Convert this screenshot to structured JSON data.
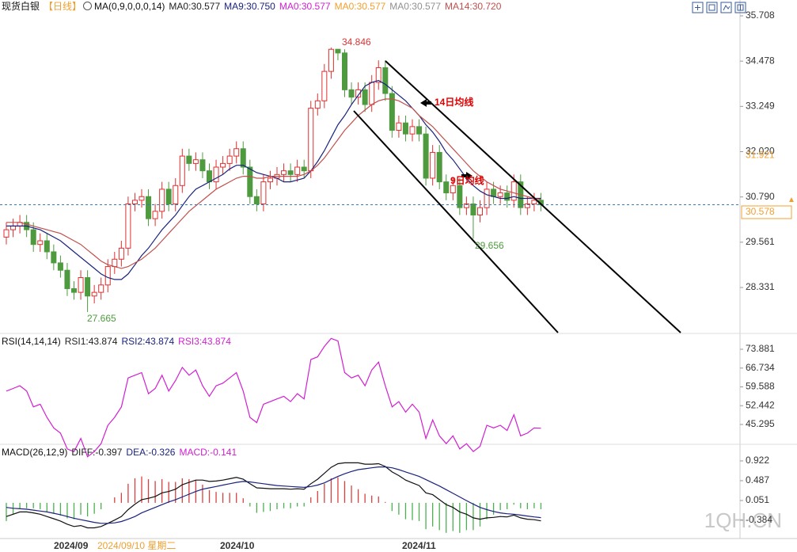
{
  "chart_data": [
    {
      "type": "candlestick",
      "title": "现货白银",
      "period": "【日线】",
      "indicator": "MA(0,9,0,0,0,14)",
      "legend": [
        {
          "text": "MA0:30.577",
          "color": "#222222"
        },
        {
          "text": "MA9:30.750",
          "color": "#1a237e"
        },
        {
          "text": "MA0:30.577",
          "color": "#d020d0"
        },
        {
          "text": "MA0:30.577",
          "color": "#f0a030"
        },
        {
          "text": "MA0:30.577",
          "color": "#909090"
        },
        {
          "text": "MA14:30.720",
          "color": "#c0504d"
        }
      ],
      "up_color": "#e03030",
      "down_color": "#4e9a3e",
      "open": [
        29.7,
        29.9,
        30.0,
        30.1,
        29.9,
        29.5,
        29.6,
        29.3,
        29.0,
        28.8,
        28.3,
        28.2,
        28.6,
        28.1,
        28.2,
        28.4,
        28.9,
        29.1,
        29.4,
        30.6,
        30.7,
        30.8,
        30.2,
        30.4,
        31.0,
        30.6,
        31.1,
        31.9,
        31.7,
        31.8,
        31.5,
        31.2,
        31.6,
        31.7,
        31.9,
        32.1,
        31.6,
        30.8,
        30.6,
        31.2,
        31.3,
        31.4,
        31.5,
        31.4,
        31.6,
        31.5,
        33.2,
        33.4,
        34.2,
        34.8,
        34.7,
        33.7,
        33.5,
        33.7,
        33.3,
        33.9,
        34.3,
        33.6,
        32.6,
        32.8,
        32.5,
        32.7,
        32.5,
        31.3,
        32.0,
        31.2,
        30.9,
        31.1,
        30.5,
        30.6,
        30.3,
        30.5,
        31.0,
        30.8,
        30.9,
        30.7,
        31.2,
        30.5,
        30.6,
        30.7
      ],
      "high": [
        30.1,
        30.2,
        30.3,
        30.3,
        30.1,
        29.8,
        29.8,
        29.5,
        29.2,
        29.0,
        28.5,
        28.8,
        28.8,
        28.4,
        28.6,
        29.1,
        29.3,
        29.6,
        30.8,
        30.9,
        31.0,
        31.0,
        30.6,
        31.2,
        31.2,
        31.3,
        32.1,
        32.1,
        32.0,
        32.0,
        31.7,
        31.8,
        31.9,
        32.1,
        32.3,
        32.3,
        31.8,
        31.0,
        31.4,
        31.5,
        31.6,
        31.7,
        31.7,
        31.8,
        31.8,
        33.4,
        33.6,
        34.4,
        34.846,
        34.8,
        34.8,
        33.9,
        33.9,
        33.9,
        34.1,
        34.5,
        34.5,
        33.8,
        33.0,
        33.0,
        32.9,
        32.9,
        32.7,
        32.2,
        32.2,
        31.4,
        31.3,
        31.3,
        30.8,
        30.8,
        30.7,
        31.2,
        31.2,
        31.1,
        31.1,
        31.4,
        31.4,
        30.8,
        30.9,
        30.9
      ],
      "low": [
        29.5,
        29.7,
        29.8,
        29.7,
        29.3,
        29.3,
        29.1,
        28.8,
        28.6,
        28.1,
        28.0,
        28.0,
        27.665,
        27.9,
        28.0,
        28.2,
        28.7,
        28.9,
        29.2,
        30.4,
        30.5,
        30.0,
        30.0,
        30.2,
        30.4,
        30.4,
        30.9,
        31.5,
        31.5,
        31.3,
        31.0,
        31.0,
        31.4,
        31.5,
        31.7,
        31.4,
        30.6,
        30.4,
        30.4,
        31.0,
        31.1,
        31.2,
        31.2,
        31.2,
        31.3,
        31.3,
        33.0,
        33.2,
        34.0,
        34.5,
        33.5,
        33.3,
        33.3,
        33.1,
        33.1,
        33.7,
        33.4,
        32.4,
        32.4,
        32.3,
        32.3,
        32.3,
        31.1,
        31.1,
        31.0,
        30.7,
        30.7,
        30.3,
        30.3,
        29.656,
        30.1,
        30.3,
        30.6,
        30.6,
        30.5,
        30.5,
        30.3,
        30.3,
        30.4,
        30.4
      ],
      "close": [
        29.9,
        30.0,
        30.1,
        29.9,
        29.5,
        29.6,
        29.3,
        29.0,
        28.8,
        28.3,
        28.2,
        28.6,
        28.1,
        28.2,
        28.4,
        28.9,
        29.1,
        29.4,
        30.6,
        30.7,
        30.8,
        30.2,
        30.4,
        31.0,
        30.6,
        31.1,
        31.9,
        31.7,
        31.8,
        31.5,
        31.2,
        31.6,
        31.7,
        31.9,
        32.1,
        31.6,
        30.8,
        30.6,
        31.2,
        31.3,
        31.4,
        31.5,
        31.4,
        31.6,
        31.5,
        33.2,
        33.4,
        34.2,
        34.8,
        34.7,
        33.7,
        33.5,
        33.7,
        33.3,
        33.9,
        34.3,
        33.6,
        32.6,
        32.8,
        32.5,
        32.7,
        32.5,
        31.3,
        32.0,
        31.2,
        30.9,
        31.1,
        30.5,
        30.6,
        30.3,
        30.5,
        31.0,
        30.8,
        30.9,
        30.7,
        31.2,
        30.5,
        30.6,
        30.7,
        30.578
      ],
      "series": [
        {
          "color": "#1a237e",
          "values": [
            30.0,
            30.0,
            30.0,
            30.0,
            29.95,
            29.9,
            29.8,
            29.7,
            29.6,
            29.45,
            29.3,
            29.15,
            29.0,
            28.85,
            28.7,
            28.6,
            28.55,
            28.55,
            28.7,
            28.95,
            29.2,
            29.4,
            29.65,
            29.9,
            30.1,
            30.3,
            30.55,
            30.8,
            31.0,
            31.1,
            31.2,
            31.3,
            31.4,
            31.55,
            31.65,
            31.65,
            31.55,
            31.45,
            31.4,
            31.35,
            31.3,
            31.2,
            31.2,
            31.25,
            31.3,
            31.5,
            31.75,
            32.05,
            32.4,
            32.75,
            33.0,
            33.3,
            33.55,
            33.8,
            33.9,
            33.95,
            33.85,
            33.7,
            33.55,
            33.4,
            33.2,
            33.0,
            32.75,
            32.55,
            32.3,
            32.0,
            31.8,
            31.55,
            31.3,
            31.1,
            30.95,
            30.85,
            30.8,
            30.75,
            30.75,
            30.8,
            30.75,
            30.75,
            30.75,
            30.75
          ]
        },
        {
          "color": "#c0504d",
          "values": [
            30.1,
            30.1,
            30.1,
            30.05,
            30.0,
            29.95,
            29.9,
            29.85,
            29.8,
            29.7,
            29.6,
            29.5,
            29.35,
            29.2,
            29.05,
            28.95,
            28.9,
            28.85,
            28.9,
            29.0,
            29.1,
            29.25,
            29.4,
            29.6,
            29.8,
            30.0,
            30.2,
            30.4,
            30.55,
            30.7,
            30.85,
            31.0,
            31.1,
            31.2,
            31.3,
            31.35,
            31.35,
            31.3,
            31.3,
            31.35,
            31.35,
            31.35,
            31.35,
            31.35,
            31.4,
            31.5,
            31.65,
            31.85,
            32.1,
            32.35,
            32.6,
            32.8,
            33.0,
            33.15,
            33.3,
            33.4,
            33.45,
            33.45,
            33.4,
            33.3,
            33.2,
            33.0,
            32.85,
            32.7,
            32.5,
            32.3,
            32.1,
            31.9,
            31.7,
            31.5,
            31.35,
            31.2,
            31.1,
            31.0,
            30.95,
            30.9,
            30.85,
            30.8,
            30.75,
            30.72
          ]
        }
      ],
      "annotations": [
        "14日均线",
        "9日均线"
      ],
      "marker_price": 31.921,
      "marker_color": "#f0a030",
      "ylim": [
        27.106,
        36.138
      ],
      "yticks": [
        35.708,
        34.478,
        33.249,
        {
          "value": 32.02,
          "label": "32.020"
        },
        {
          "value": 30.79,
          "label": "30.790"
        },
        29.561,
        28.331
      ]
    },
    {
      "type": "line",
      "title": "RSI(14,14,14)",
      "legend": [
        {
          "text": "RSI1:43.874",
          "color": "#222222"
        },
        {
          "text": "RSI2:43.874",
          "color": "#1a237e"
        },
        {
          "text": "RSI3:43.874",
          "color": "#d020d0"
        }
      ],
      "series": [
        {
          "color": "#d020d0",
          "values": [
            58,
            59,
            60,
            58,
            52,
            53,
            48,
            44,
            42,
            36,
            35,
            40,
            33,
            35,
            38,
            45,
            48,
            52,
            63,
            64,
            65,
            57,
            59,
            64,
            58,
            62,
            67,
            64,
            66,
            60,
            56,
            60,
            61,
            63,
            65,
            58,
            48,
            46,
            53,
            54,
            55,
            56,
            54,
            57,
            55,
            70,
            71,
            75,
            78,
            77,
            65,
            63,
            64,
            60,
            66,
            69,
            60,
            52,
            54,
            50,
            53,
            50,
            40,
            47,
            41,
            38,
            41,
            36,
            38,
            35,
            37,
            45,
            44,
            45,
            43,
            49,
            41,
            42,
            44,
            43.874
          ]
        }
      ],
      "ylim": [
        38.07,
        79.6
      ],
      "yticks": [
        73.881,
        66.734,
        59.588,
        52.442,
        45.295
      ]
    },
    {
      "type": "macd",
      "title": "MACD(26,12,9)",
      "legend": [
        {
          "text": "DIFF:-0.397",
          "color": "#222222"
        },
        {
          "text": "DEA:-0.326",
          "color": "#1a237e"
        },
        {
          "text": "MACD:-0.141",
          "color": "#d020d0"
        }
      ],
      "series": [
        {
          "color": "#111111",
          "values": [
            -0.3,
            -0.25,
            -0.2,
            -0.2,
            -0.22,
            -0.25,
            -0.3,
            -0.35,
            -0.4,
            -0.47,
            -0.52,
            -0.5,
            -0.55,
            -0.55,
            -0.52,
            -0.45,
            -0.38,
            -0.3,
            -0.15,
            -0.03,
            0.07,
            0.1,
            0.14,
            0.22,
            0.25,
            0.3,
            0.4,
            0.45,
            0.5,
            0.5,
            0.47,
            0.48,
            0.5,
            0.53,
            0.56,
            0.52,
            0.42,
            0.33,
            0.32,
            0.31,
            0.31,
            0.31,
            0.3,
            0.31,
            0.3,
            0.42,
            0.52,
            0.65,
            0.78,
            0.86,
            0.88,
            0.88,
            0.88,
            0.85,
            0.85,
            0.86,
            0.8,
            0.68,
            0.6,
            0.5,
            0.44,
            0.38,
            0.22,
            0.18,
            0.07,
            -0.04,
            -0.1,
            -0.2,
            -0.25,
            -0.33,
            -0.36,
            -0.33,
            -0.32,
            -0.3,
            -0.31,
            -0.27,
            -0.33,
            -0.36,
            -0.37,
            -0.397
          ]
        },
        {
          "color": "#1a237e",
          "values": [
            -0.1,
            -0.12,
            -0.13,
            -0.14,
            -0.16,
            -0.18,
            -0.2,
            -0.23,
            -0.26,
            -0.3,
            -0.34,
            -0.37,
            -0.4,
            -0.43,
            -0.45,
            -0.45,
            -0.44,
            -0.41,
            -0.36,
            -0.3,
            -0.22,
            -0.16,
            -0.1,
            -0.04,
            0.02,
            0.07,
            0.13,
            0.19,
            0.25,
            0.3,
            0.33,
            0.36,
            0.39,
            0.42,
            0.45,
            0.47,
            0.46,
            0.44,
            0.42,
            0.4,
            0.38,
            0.37,
            0.36,
            0.35,
            0.34,
            0.36,
            0.39,
            0.44,
            0.51,
            0.58,
            0.64,
            0.69,
            0.73,
            0.75,
            0.77,
            0.79,
            0.79,
            0.77,
            0.73,
            0.68,
            0.63,
            0.58,
            0.51,
            0.44,
            0.37,
            0.29,
            0.21,
            0.13,
            0.05,
            -0.03,
            -0.1,
            -0.15,
            -0.19,
            -0.22,
            -0.24,
            -0.25,
            -0.27,
            -0.29,
            -0.31,
            -0.326
          ]
        }
      ],
      "histogram": {
        "up_color": "#d84040",
        "down_color": "#4caf50",
        "values": [
          -0.4,
          -0.26,
          -0.14,
          -0.12,
          -0.12,
          -0.14,
          -0.2,
          -0.24,
          -0.28,
          -0.34,
          -0.36,
          -0.26,
          -0.3,
          -0.24,
          -0.14,
          0,
          0.12,
          0.22,
          0.42,
          0.54,
          0.58,
          0.52,
          0.48,
          0.52,
          0.46,
          0.46,
          0.54,
          0.52,
          0.5,
          0.4,
          0.28,
          0.24,
          0.22,
          0.22,
          0.22,
          0.1,
          -0.08,
          -0.22,
          -0.2,
          -0.18,
          -0.14,
          -0.12,
          -0.12,
          -0.08,
          -0.08,
          0.12,
          0.26,
          0.42,
          0.54,
          0.56,
          0.48,
          0.38,
          0.3,
          0.2,
          0.16,
          0.14,
          0.02,
          -0.18,
          -0.26,
          -0.36,
          -0.38,
          -0.4,
          -0.58,
          -0.52,
          -0.6,
          -0.66,
          -0.62,
          -0.66,
          -0.6,
          -0.6,
          -0.52,
          -0.36,
          -0.26,
          -0.16,
          -0.14,
          -0.04,
          -0.12,
          -0.14,
          -0.12,
          -0.141
        ]
      },
      "ylim": [
        -0.785,
        1.27
      ],
      "yticks": [
        0.922,
        0.487,
        0.051,
        -0.384
      ]
    }
  ],
  "x_axis": {
    "labels": [
      "2024/09",
      "2024/10",
      "2024/11"
    ],
    "cursor_label": "2024/09/10 星期二"
  },
  "watermark": "1QH.CN"
}
